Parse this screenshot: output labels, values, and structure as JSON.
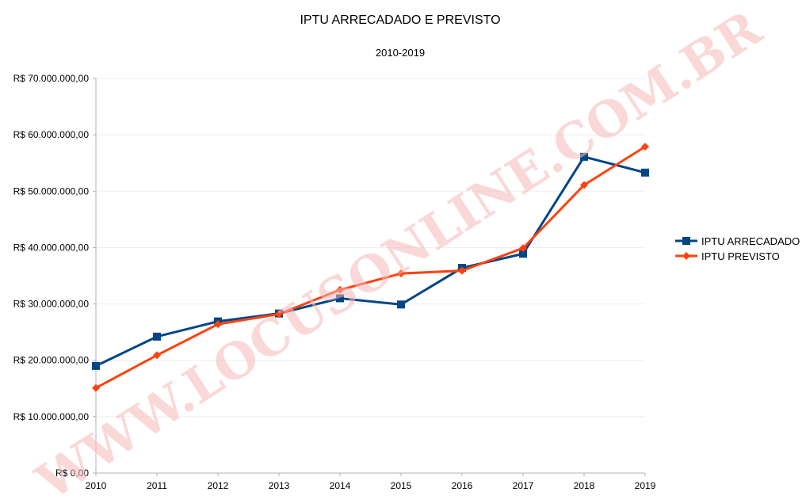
{
  "watermark": "WWW.LOCUSONLINE.COM.BR",
  "chart_data": {
    "type": "line",
    "title": "IPTU ARRECADADO E PREVISTO",
    "subtitle": "2010-2019",
    "xlabel": "",
    "ylabel": "",
    "categories": [
      "2010",
      "2011",
      "2012",
      "2013",
      "2014",
      "2015",
      "2016",
      "2017",
      "2018",
      "2019"
    ],
    "ylim": [
      0,
      70000000
    ],
    "ytick_values": [
      0,
      10000000,
      20000000,
      30000000,
      40000000,
      50000000,
      60000000,
      70000000
    ],
    "ytick_labels": [
      "R$ 0,00",
      "R$ 10.000.000,00",
      "R$ 20.000.000,00",
      "R$ 30.000.000,00",
      "R$ 40.000.000,00",
      "R$ 50.000.000,00",
      "R$ 60.000.000,00",
      "R$ 70.000.000,00"
    ],
    "grid": true,
    "legend_position": "right",
    "series": [
      {
        "name": "IPTU ARRECADADO",
        "color": "#004586",
        "marker": "square",
        "values": [
          19000000,
          24200000,
          26900000,
          28300000,
          31000000,
          29900000,
          36400000,
          38900000,
          56100000,
          53300000
        ]
      },
      {
        "name": "IPTU PREVISTO",
        "color": "#ff420e",
        "marker": "diamond",
        "values": [
          15100000,
          20900000,
          26400000,
          28200000,
          32500000,
          35400000,
          35900000,
          39900000,
          51100000,
          57900000
        ]
      }
    ]
  }
}
